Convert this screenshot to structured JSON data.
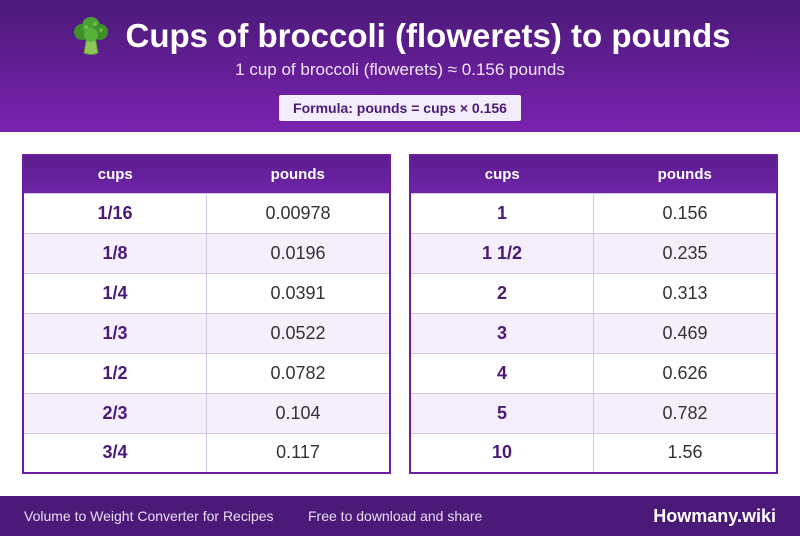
{
  "header": {
    "title": "Cups of broccoli (flowerets) to pounds",
    "icon": "broccoli-icon",
    "subtitle": "1 cup of broccoli (flowerets) ≈ 0.156 pounds",
    "formula": "Formula: pounds = cups × 0.156"
  },
  "columns": {
    "cups": "cups",
    "pounds": "pounds"
  },
  "tables": [
    {
      "rows": [
        {
          "cups": "1/16",
          "pounds": "0.00978"
        },
        {
          "cups": "1/8",
          "pounds": "0.0196"
        },
        {
          "cups": "1/4",
          "pounds": "0.0391"
        },
        {
          "cups": "1/3",
          "pounds": "0.0522"
        },
        {
          "cups": "1/2",
          "pounds": "0.0782"
        },
        {
          "cups": "2/3",
          "pounds": "0.104"
        },
        {
          "cups": "3/4",
          "pounds": "0.117"
        }
      ]
    },
    {
      "rows": [
        {
          "cups": "1",
          "pounds": "0.156"
        },
        {
          "cups": "1 1/2",
          "pounds": "0.235"
        },
        {
          "cups": "2",
          "pounds": "0.313"
        },
        {
          "cups": "3",
          "pounds": "0.469"
        },
        {
          "cups": "4",
          "pounds": "0.626"
        },
        {
          "cups": "5",
          "pounds": "0.782"
        },
        {
          "cups": "10",
          "pounds": "1.56"
        }
      ]
    }
  ],
  "footer": {
    "left": "Volume to Weight Converter for Recipes",
    "middle": "Free to download and share",
    "brand": "Howmany.wiki"
  },
  "colors": {
    "primary": "#4b1a78",
    "accent": "#7a22b0",
    "row_alt": "#f4effa"
  }
}
